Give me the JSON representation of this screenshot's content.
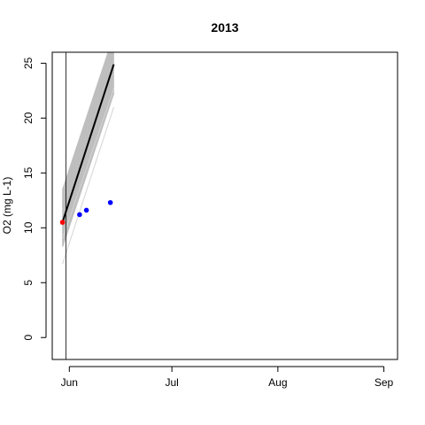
{
  "chart_data": {
    "type": "line",
    "title": "2013",
    "xlabel": "",
    "ylabel": "O2 (mg L-1)",
    "x_type": "date",
    "xlim": [
      "2013-05-27",
      "2013-09-05"
    ],
    "ylim": [
      -2,
      26
    ],
    "x_ticks": [
      {
        "date": "2013-06-01",
        "label": "Jun"
      },
      {
        "date": "2013-07-01",
        "label": "Jul"
      },
      {
        "date": "2013-08-01",
        "label": "Aug"
      },
      {
        "date": "2013-09-01",
        "label": "Sep"
      }
    ],
    "y_ticks": [
      0,
      5,
      10,
      15,
      20,
      25
    ],
    "grid": false,
    "vline_date": "2013-05-31",
    "ensemble_band": {
      "color": "#bebebe",
      "x": [
        "2013-05-30",
        "2013-06-14"
      ],
      "lower": [
        8.3,
        22.3
      ],
      "upper": [
        13.4,
        27.5
      ]
    },
    "outlier_lines": [
      {
        "x": [
          "2013-05-30",
          "2013-06-14"
        ],
        "y": [
          6.7,
          21.0
        ]
      },
      {
        "x": [
          "2013-05-30",
          "2013-06-14"
        ],
        "y": [
          9.0,
          22.7
        ]
      }
    ],
    "series": [
      {
        "kind": "line",
        "color": "#000000",
        "x": [
          "2013-05-30",
          "2013-06-14"
        ],
        "y": [
          10.5,
          24.9
        ]
      },
      {
        "kind": "points",
        "color": "#ff0000",
        "x": [
          "2013-05-30"
        ],
        "y": [
          10.5
        ]
      },
      {
        "kind": "points",
        "color": "#0000ff",
        "x": [
          "2013-06-04",
          "2013-06-06",
          "2013-06-13"
        ],
        "y": [
          11.2,
          11.6,
          12.3
        ]
      }
    ]
  }
}
